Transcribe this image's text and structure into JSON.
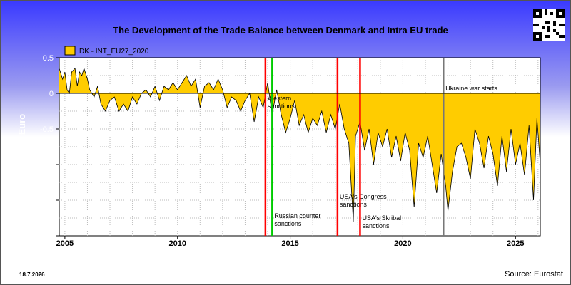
{
  "chart_data": {
    "type": "area",
    "title": "The Development of the Trade Balance between Denmark and Intra EU trade",
    "ylabel": "€ * Billion Euro",
    "xlabel": "",
    "legend": {
      "label": "DK - INT_EU27_2020",
      "placement": "top-left"
    },
    "xlim": [
      2004.75,
      2026.1
    ],
    "ylim": [
      -2,
      0.5
    ],
    "x_ticks": [
      "2005",
      "2010",
      "2015",
      "2020",
      "2025"
    ],
    "y_ticks": [
      "0.5",
      "0",
      "-0.5",
      "-1",
      "-1.5",
      "-2"
    ],
    "grid": true,
    "series_color": "#ffcc00",
    "series": [
      {
        "name": "DK - INT_EU27_2020",
        "points": [
          [
            2004.75,
            0.35
          ],
          [
            2004.9,
            0.2
          ],
          [
            2005.0,
            0.3
          ],
          [
            2005.1,
            0.05
          ],
          [
            2005.2,
            0.0
          ],
          [
            2005.3,
            0.3
          ],
          [
            2005.45,
            0.35
          ],
          [
            2005.55,
            0.1
          ],
          [
            2005.65,
            0.3
          ],
          [
            2005.75,
            0.25
          ],
          [
            2005.85,
            0.35
          ],
          [
            2006.0,
            0.2
          ],
          [
            2006.1,
            0.05
          ],
          [
            2006.3,
            -0.05
          ],
          [
            2006.45,
            0.1
          ],
          [
            2006.6,
            -0.15
          ],
          [
            2006.8,
            -0.25
          ],
          [
            2007.0,
            -0.1
          ],
          [
            2007.2,
            -0.05
          ],
          [
            2007.4,
            -0.25
          ],
          [
            2007.6,
            -0.15
          ],
          [
            2007.8,
            -0.25
          ],
          [
            2008.0,
            -0.05
          ],
          [
            2008.2,
            -0.15
          ],
          [
            2008.4,
            0.0
          ],
          [
            2008.6,
            0.05
          ],
          [
            2008.8,
            -0.05
          ],
          [
            2009.0,
            0.1
          ],
          [
            2009.2,
            -0.1
          ],
          [
            2009.4,
            0.1
          ],
          [
            2009.6,
            0.05
          ],
          [
            2009.8,
            0.15
          ],
          [
            2010.0,
            0.05
          ],
          [
            2010.2,
            0.15
          ],
          [
            2010.4,
            0.25
          ],
          [
            2010.6,
            0.1
          ],
          [
            2010.8,
            0.2
          ],
          [
            2011.0,
            -0.2
          ],
          [
            2011.2,
            0.1
          ],
          [
            2011.4,
            0.15
          ],
          [
            2011.6,
            0.05
          ],
          [
            2011.8,
            0.2
          ],
          [
            2012.0,
            0.05
          ],
          [
            2012.2,
            -0.2
          ],
          [
            2012.4,
            -0.05
          ],
          [
            2012.6,
            -0.1
          ],
          [
            2012.8,
            -0.25
          ],
          [
            2013.0,
            -0.1
          ],
          [
            2013.2,
            0.0
          ],
          [
            2013.4,
            -0.4
          ],
          [
            2013.6,
            -0.05
          ],
          [
            2013.8,
            -0.2
          ],
          [
            2014.0,
            0.15
          ],
          [
            2014.2,
            -0.3
          ],
          [
            2014.4,
            0.05
          ],
          [
            2014.6,
            -0.3
          ],
          [
            2014.8,
            -0.55
          ],
          [
            2015.0,
            -0.35
          ],
          [
            2015.2,
            -0.1
          ],
          [
            2015.4,
            -0.45
          ],
          [
            2015.6,
            -0.3
          ],
          [
            2015.8,
            -0.55
          ],
          [
            2016.0,
            -0.35
          ],
          [
            2016.2,
            -0.45
          ],
          [
            2016.4,
            -0.25
          ],
          [
            2016.6,
            -0.55
          ],
          [
            2016.8,
            -0.3
          ],
          [
            2017.0,
            -0.5
          ],
          [
            2017.2,
            -0.15
          ],
          [
            2017.4,
            -0.5
          ],
          [
            2017.6,
            -0.7
          ],
          [
            2017.8,
            -1.8
          ],
          [
            2017.9,
            -0.6
          ],
          [
            2018.1,
            -0.4
          ],
          [
            2018.3,
            -0.8
          ],
          [
            2018.5,
            -0.5
          ],
          [
            2018.7,
            -1.0
          ],
          [
            2018.9,
            -0.55
          ],
          [
            2019.1,
            -0.75
          ],
          [
            2019.3,
            -0.5
          ],
          [
            2019.5,
            -0.9
          ],
          [
            2019.7,
            -0.6
          ],
          [
            2019.9,
            -0.95
          ],
          [
            2020.1,
            -0.55
          ],
          [
            2020.3,
            -0.8
          ],
          [
            2020.5,
            -1.6
          ],
          [
            2020.7,
            -0.7
          ],
          [
            2020.9,
            -0.9
          ],
          [
            2021.1,
            -0.6
          ],
          [
            2021.3,
            -1.0
          ],
          [
            2021.5,
            -1.4
          ],
          [
            2021.7,
            -0.85
          ],
          [
            2021.9,
            -1.3
          ],
          [
            2022.0,
            -1.65
          ],
          [
            2022.2,
            -1.1
          ],
          [
            2022.4,
            -0.75
          ],
          [
            2022.6,
            -0.7
          ],
          [
            2022.8,
            -0.9
          ],
          [
            2023.0,
            -1.2
          ],
          [
            2023.2,
            -0.5
          ],
          [
            2023.4,
            -0.7
          ],
          [
            2023.6,
            -1.05
          ],
          [
            2023.8,
            -0.6
          ],
          [
            2024.0,
            -0.85
          ],
          [
            2024.2,
            -1.3
          ],
          [
            2024.4,
            -0.6
          ],
          [
            2024.6,
            -1.1
          ],
          [
            2024.8,
            -0.5
          ],
          [
            2025.0,
            -1.0
          ],
          [
            2025.2,
            -0.7
          ],
          [
            2025.4,
            -1.15
          ],
          [
            2025.6,
            -0.45
          ],
          [
            2025.8,
            -1.5
          ],
          [
            2025.95,
            -0.35
          ],
          [
            2026.1,
            -1.0
          ]
        ]
      }
    ],
    "events": [
      {
        "x": 2013.9,
        "color": "#ff0000",
        "label_lines": [
          "Western",
          "sanctions"
        ],
        "label_y": -0.1
      },
      {
        "x": 2014.2,
        "color": "#00cc00",
        "label_lines": [
          "Russian counter",
          "sanctions"
        ],
        "label_y": -1.75
      },
      {
        "x": 2017.1,
        "color": "#ff0000",
        "label_lines": [
          "USA's Congress",
          "sanctions"
        ],
        "label_y": -1.48
      },
      {
        "x": 2018.1,
        "color": "#ff0000",
        "label_lines": [
          "USA's Skribal",
          "sanctions"
        ],
        "label_y": -1.78
      },
      {
        "x": 2021.8,
        "color": "#777777",
        "label_lines": [
          "Ukraine war starts"
        ],
        "label_y": 0.04
      }
    ]
  },
  "footer": {
    "date": "18.7.2026",
    "source": "Source: Eurostat"
  }
}
